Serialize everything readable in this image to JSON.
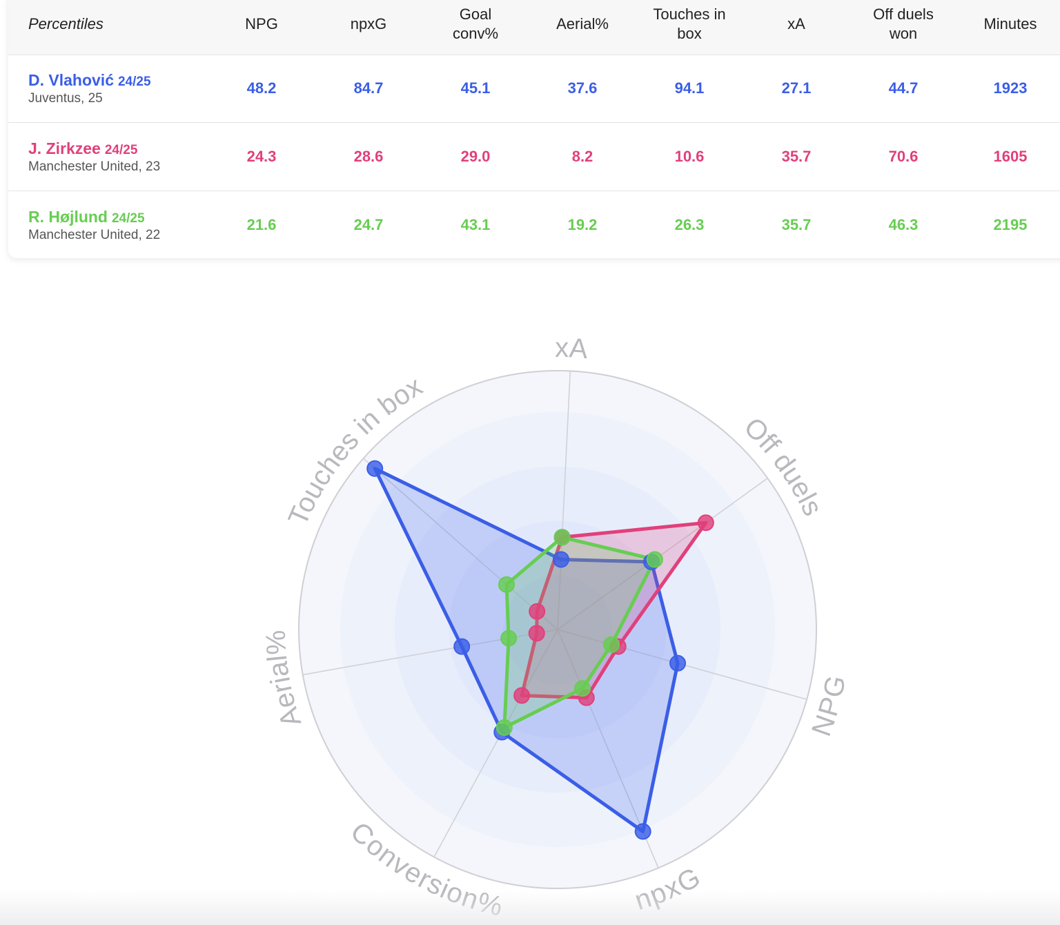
{
  "table": {
    "header": [
      "Percentiles",
      "NPG",
      "npxG",
      "Goal\nconv%",
      "Aerial%",
      "Touches in\nbox",
      "xA",
      "Off duels\nwon",
      "Minutes"
    ],
    "players": [
      {
        "name": "D. Vlahović",
        "season": "24/25",
        "info": "Juventus, 25",
        "values": [
          "48.2",
          "84.7",
          "45.1",
          "37.6",
          "94.1",
          "27.1",
          "44.7",
          "1923"
        ]
      },
      {
        "name": "J. Zirkzee",
        "season": "24/25",
        "info": "Manchester United, 23",
        "values": [
          "24.3",
          "28.6",
          "29.0",
          "8.2",
          "10.6",
          "35.7",
          "70.6",
          "1605"
        ]
      },
      {
        "name": "R. Højlund",
        "season": "24/25",
        "info": "Manchester United, 22",
        "values": [
          "21.6",
          "24.7",
          "43.1",
          "19.2",
          "26.3",
          "35.7",
          "46.3",
          "2195"
        ]
      }
    ]
  },
  "colors": {
    "blue": "#3b5ee6",
    "pink": "#e0407b",
    "green": "#67cd52"
  },
  "chart_data": {
    "type": "radar",
    "axes": [
      "xA",
      "Off duels",
      "NPG",
      "npxG",
      "Conversion%",
      "Aerial%",
      "Touches in box"
    ],
    "range": [
      0,
      100
    ],
    "grid": true,
    "series": [
      {
        "name": "D. Vlahović",
        "color": "#3b5ee6",
        "values": [
          27.1,
          44.7,
          48.2,
          84.7,
          45.1,
          37.6,
          94.1
        ]
      },
      {
        "name": "J. Zirkzee",
        "color": "#e0407b",
        "values": [
          35.7,
          70.6,
          24.3,
          28.6,
          29.0,
          8.2,
          10.6
        ]
      },
      {
        "name": "R. Højlund",
        "color": "#67cd52",
        "values": [
          35.7,
          46.3,
          21.6,
          24.7,
          43.1,
          19.2,
          26.3
        ]
      }
    ]
  }
}
